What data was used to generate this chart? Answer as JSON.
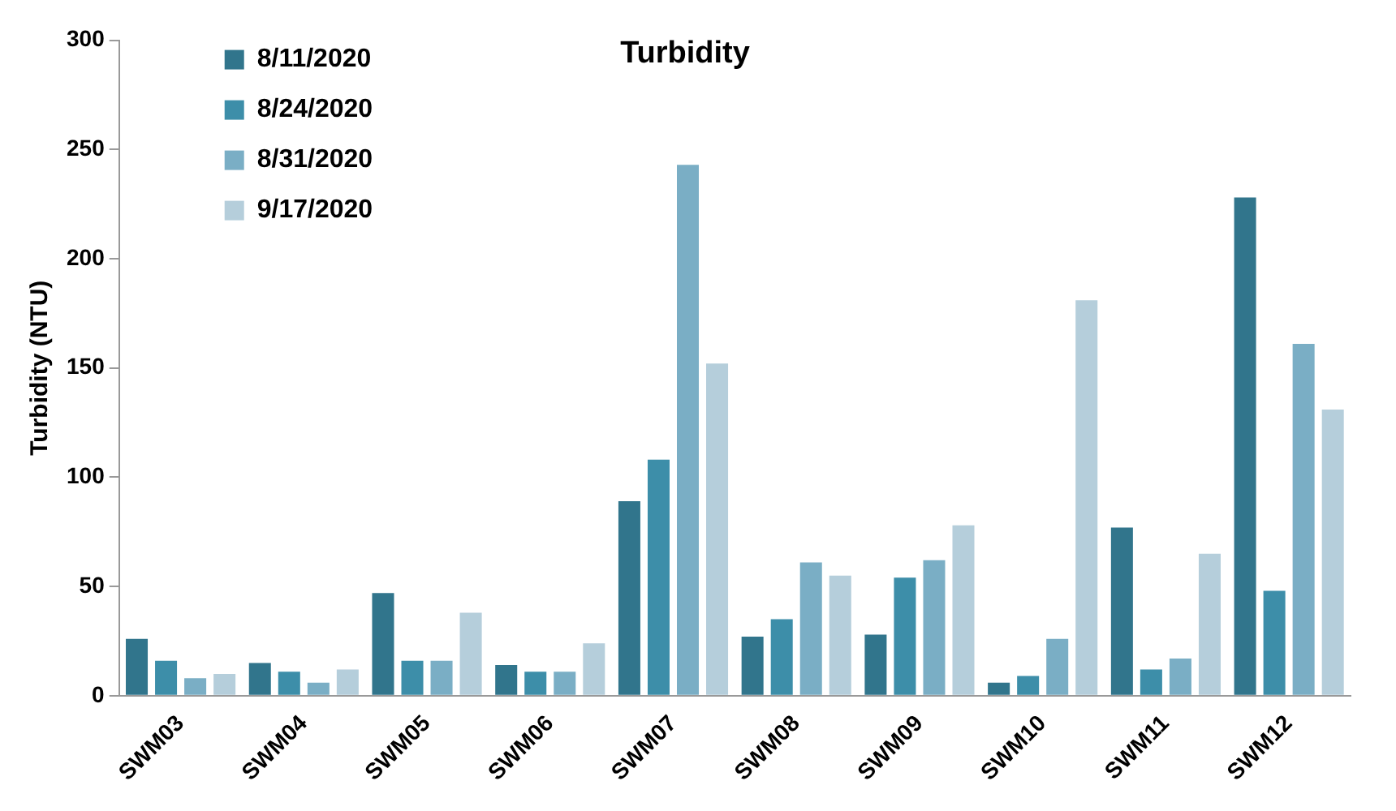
{
  "chart_data": {
    "type": "bar",
    "title": "Turbidity",
    "ylabel": "Turbidity (NTU)",
    "categories": [
      "SWM03",
      "SWM04",
      "SWM05",
      "SWM06",
      "SWM07",
      "SWM08",
      "SWM09",
      "SWM10",
      "SWM11",
      "SWM12"
    ],
    "series": [
      {
        "name": "8/11/2020",
        "color": "#31758c",
        "values": [
          26,
          15,
          47,
          14,
          89,
          27,
          28,
          6,
          77,
          228
        ]
      },
      {
        "name": "8/24/2020",
        "color": "#3d8ea9",
        "values": [
          16,
          11,
          16,
          11,
          108,
          35,
          54,
          9,
          12,
          48
        ]
      },
      {
        "name": "8/31/2020",
        "color": "#7aaec5",
        "values": [
          8,
          6,
          16,
          11,
          243,
          61,
          62,
          26,
          17,
          161
        ]
      },
      {
        "name": "9/17/2020",
        "color": "#b5cedb",
        "values": [
          10,
          12,
          38,
          24,
          152,
          55,
          78,
          181,
          65,
          131
        ]
      }
    ],
    "ylim": [
      0,
      300
    ],
    "yticks": [
      0,
      50,
      100,
      150,
      200,
      250,
      300
    ],
    "grid": false,
    "legend": "top left"
  }
}
